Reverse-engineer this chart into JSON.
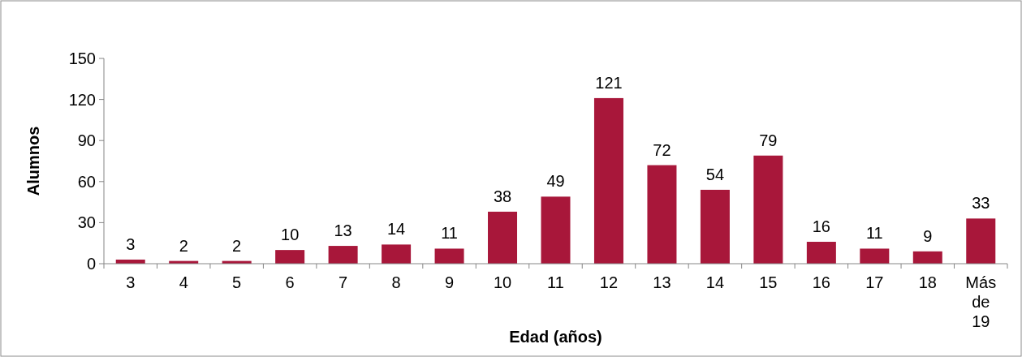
{
  "chart_data": {
    "type": "bar",
    "xlabel": "Edad (años)",
    "ylabel": "Alumnos",
    "categories": [
      "3",
      "4",
      "5",
      "6",
      "7",
      "8",
      "9",
      "10",
      "11",
      "12",
      "13",
      "14",
      "15",
      "16",
      "17",
      "18",
      "Más de 19"
    ],
    "values": [
      3,
      2,
      2,
      10,
      13,
      14,
      11,
      38,
      49,
      121,
      72,
      54,
      79,
      16,
      11,
      9,
      33
    ],
    "color": "#a8173a",
    "ylim": [
      0,
      150
    ],
    "yticks": [
      0,
      30,
      60,
      90,
      120,
      150
    ],
    "data_labels": true,
    "grid": false
  }
}
